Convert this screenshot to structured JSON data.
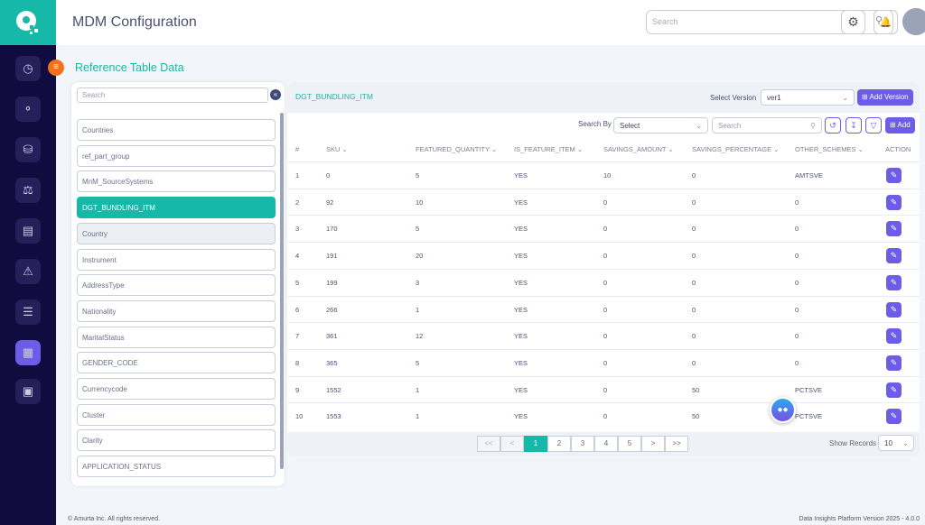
{
  "header": {
    "title": "MDM Configuration",
    "search_placeholder": "Search"
  },
  "sidebar": {
    "items": [
      "dashboard",
      "workflow",
      "database",
      "balance",
      "server",
      "alert",
      "sliders",
      "grid",
      "basket"
    ],
    "active": "grid"
  },
  "page": {
    "section_title": "Reference Table Data"
  },
  "left_panel": {
    "search_placeholder": "Search",
    "items": [
      "Countries",
      "ref_part_group",
      "MnM_SourceSystems",
      "DGT_BUNDLING_ITM",
      "Country",
      "Instrument",
      "AddressType",
      "Nationality",
      "MaritalStatus",
      "GENDER_CODE",
      "Currencycode",
      "Cluster",
      "Clarity",
      "APPLICATION_STATUS"
    ],
    "selected": "DGT_BUNDLING_ITM"
  },
  "table_panel": {
    "title": "DGT_BUNDLING_ITM",
    "select_version_label": "Select Version",
    "version": "ver1",
    "add_version": "Add Version",
    "search_by_label": "Search By",
    "search_by_value": "Select",
    "search_placeholder": "Search",
    "add": "Add",
    "columns": [
      "#",
      "SKU",
      "FEATURED_QUANTITY",
      "IS_FEATURE_ITEM",
      "SAVINGS_AMOUNT",
      "SAVINGS_PERCENTAGE",
      "OTHER_SCHEMES",
      "ACTION"
    ],
    "rows": [
      [
        "1",
        "0",
        "5",
        "YES",
        "10",
        "0",
        "AMTSVE"
      ],
      [
        "2",
        "92",
        "10",
        "YES",
        "0",
        "0",
        "0"
      ],
      [
        "3",
        "170",
        "5",
        "YES",
        "0",
        "0",
        "0"
      ],
      [
        "4",
        "191",
        "20",
        "YES",
        "0",
        "0",
        "0"
      ],
      [
        "5",
        "199",
        "3",
        "YES",
        "0",
        "0",
        "0"
      ],
      [
        "6",
        "266",
        "1",
        "YES",
        "0",
        "0",
        "0"
      ],
      [
        "7",
        "361",
        "12",
        "YES",
        "0",
        "0",
        "0"
      ],
      [
        "8",
        "365",
        "5",
        "YES",
        "0",
        "0",
        "0"
      ],
      [
        "9",
        "1552",
        "1",
        "YES",
        "0",
        "50",
        "PCTSVE"
      ],
      [
        "10",
        "1553",
        "1",
        "YES",
        "0",
        "50",
        "PCTSVE"
      ]
    ],
    "pagination": {
      "first": "<<",
      "prev": "<",
      "pages": [
        "1",
        "2",
        "3",
        "4",
        "5"
      ],
      "current": "1",
      "next": ">",
      "last": ">>"
    },
    "show_records_label": "Show Records",
    "show_records": "10"
  },
  "footer": {
    "left": "© Amurta Inc. All rights reserved.",
    "right": "Data Insights Platform Version 2025 - 4.0.0"
  },
  "colors": {
    "teal": "#16b9a8",
    "purple": "#6c5ce7",
    "navy": "#100c3f",
    "orange": "#f37021"
  }
}
